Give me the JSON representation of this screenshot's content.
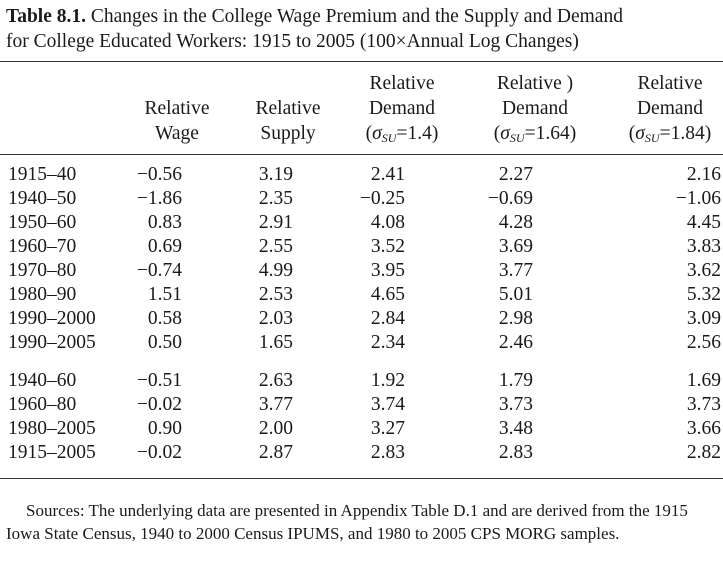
{
  "caption": {
    "label": "Table 8.1.",
    "line1": "Changes in the College Wage Premium and the Supply and Demand",
    "line2": "for College Educated Workers: 1915 to 2005 (100×Annual Log Changes)"
  },
  "headers": {
    "wage": [
      "Relative",
      "Wage"
    ],
    "supply": [
      "Relative",
      "Supply"
    ],
    "demand1": [
      "Relative",
      "Demand",
      "(σ",
      "SU",
      "=1.4)"
    ],
    "demand2": [
      "Relative )",
      "Demand",
      "(σ",
      "SU",
      "=1.64)"
    ],
    "demand3": [
      "Relative",
      "Demand",
      "(σ",
      "SU",
      "=1.84)"
    ]
  },
  "rows": [
    {
      "period": "1915–40",
      "wage": "−0.56",
      "supply": "3.19",
      "d1": "2.41",
      "d2": "2.27",
      "d3": "2.16"
    },
    {
      "period": "1940–50",
      "wage": "−1.86",
      "supply": "2.35",
      "d1": "−0.25",
      "d2": "−0.69",
      "d3": "−1.06"
    },
    {
      "period": "1950–60",
      "wage": "0.83",
      "supply": "2.91",
      "d1": "4.08",
      "d2": "4.28",
      "d3": "4.45"
    },
    {
      "period": "1960–70",
      "wage": "0.69",
      "supply": "2.55",
      "d1": "3.52",
      "d2": "3.69",
      "d3": "3.83"
    },
    {
      "period": "1970–80",
      "wage": "−0.74",
      "supply": "4.99",
      "d1": "3.95",
      "d2": "3.77",
      "d3": "3.62"
    },
    {
      "period": "1980–90",
      "wage": "1.51",
      "supply": "2.53",
      "d1": "4.65",
      "d2": "5.01",
      "d3": "5.32"
    },
    {
      "period": "1990–2000",
      "wage": "0.58",
      "supply": "2.03",
      "d1": "2.84",
      "d2": "2.98",
      "d3": "3.09"
    },
    {
      "period": "1990–2005",
      "wage": "0.50",
      "supply": "1.65",
      "d1": "2.34",
      "d2": "2.46",
      "d3": "2.56"
    },
    {
      "period": "1940–60",
      "wage": "−0.51",
      "supply": "2.63",
      "d1": "1.92",
      "d2": "1.79",
      "d3": "1.69"
    },
    {
      "period": "1960–80",
      "wage": "−0.02",
      "supply": "3.77",
      "d1": "3.74",
      "d2": "3.73",
      "d3": "3.73"
    },
    {
      "period": "1980–2005",
      "wage": "0.90",
      "supply": "2.00",
      "d1": "3.27",
      "d2": "3.48",
      "d3": "3.66"
    },
    {
      "period": "1915–2005",
      "wage": "−0.02",
      "supply": "2.87",
      "d1": "2.83",
      "d2": "2.83",
      "d3": "2.82"
    }
  ],
  "notes": {
    "sources": "Sources: The underlying data are presented in Appendix Table D.1 and are derived from the 1915 Iowa State Census, 1940 to 2000 Census IPUMS, and 1980 to 2005 CPS MORG samples."
  }
}
